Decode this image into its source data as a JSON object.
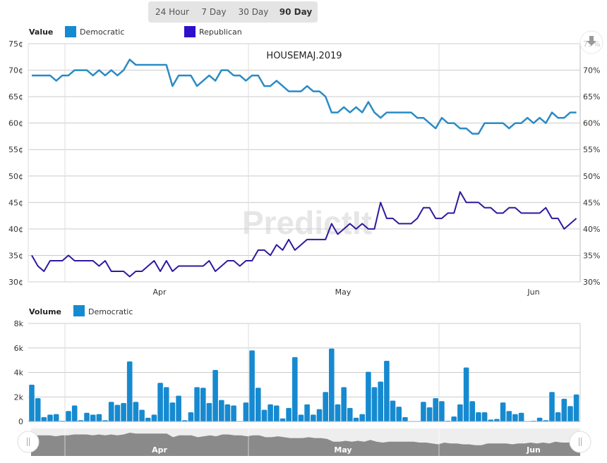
{
  "range_selector": {
    "options": [
      "24 Hour",
      "7 Day",
      "30 Day",
      "90 Day"
    ],
    "selected": "90 Day"
  },
  "export_icon": "download-icon",
  "watermark": "PredictIt",
  "colors": {
    "democratic_line": "#2a8bc4",
    "democratic_bar": "#168ad0",
    "republican": "#2d0fcc",
    "republican_line": "#2c1a9e",
    "navigator_fill": "#8a8a8a",
    "navigator_bg": "#eeeeee",
    "grid": "#cccccc"
  },
  "chart_data": [
    {
      "type": "line",
      "title": "HOUSEMAJ.2019",
      "legend_title": "Value",
      "legend_placement": "top-left",
      "x_range": [
        "Mar 11",
        "Jun 8"
      ],
      "x_tick_labels": [
        "Apr",
        "May",
        "Jun"
      ],
      "y_left_ticks": [
        "75¢",
        "70¢",
        "65¢",
        "60¢",
        "55¢",
        "50¢",
        "45¢",
        "40¢",
        "35¢",
        "30¢"
      ],
      "y_right_ticks": [
        "75%",
        "70%",
        "65%",
        "60%",
        "55%",
        "50%",
        "45%",
        "40%",
        "35%",
        "30%"
      ],
      "ylim": [
        30,
        75
      ],
      "grid": true,
      "series": [
        {
          "name": "Democratic",
          "values": [
            69,
            69,
            69,
            69,
            68,
            69,
            69,
            70,
            70,
            70,
            69,
            70,
            69,
            70,
            69,
            70,
            72,
            71,
            71,
            71,
            71,
            71,
            71,
            67,
            69,
            69,
            69,
            67,
            68,
            69,
            68,
            70,
            70,
            69,
            69,
            68,
            69,
            69,
            67,
            67,
            68,
            67,
            66,
            66,
            66,
            67,
            66,
            66,
            65,
            62,
            62,
            63,
            62,
            63,
            62,
            64,
            62,
            61,
            62,
            62,
            62,
            62,
            62,
            61,
            61,
            60,
            59,
            61,
            60,
            60,
            59,
            59,
            58,
            58,
            60,
            60,
            60,
            60,
            59,
            60,
            60,
            61,
            60,
            61,
            60,
            62,
            61,
            61,
            62,
            62
          ]
        },
        {
          "name": "Republican",
          "values": [
            35,
            33,
            32,
            34,
            34,
            34,
            35,
            34,
            34,
            34,
            34,
            33,
            34,
            32,
            32,
            32,
            31,
            32,
            32,
            33,
            34,
            32,
            34,
            32,
            33,
            33,
            33,
            33,
            33,
            34,
            32,
            33,
            34,
            34,
            33,
            34,
            34,
            36,
            36,
            35,
            37,
            36,
            38,
            36,
            37,
            38,
            38,
            38,
            38,
            41,
            39,
            40,
            41,
            40,
            41,
            40,
            40,
            45,
            42,
            42,
            41,
            41,
            41,
            42,
            44,
            44,
            42,
            42,
            43,
            43,
            47,
            45,
            45,
            45,
            44,
            44,
            43,
            43,
            44,
            44,
            43,
            43,
            43,
            43,
            44,
            42,
            42,
            40,
            41,
            42
          ]
        }
      ]
    },
    {
      "type": "bar",
      "legend_title": "Volume",
      "legend_placement": "top-left",
      "x_range": [
        "Mar 11",
        "Jun 8"
      ],
      "y_ticks": [
        "8k",
        "6k",
        "4k",
        "2k",
        "0"
      ],
      "ylim": [
        0,
        8000
      ],
      "grid": true,
      "series": [
        {
          "name": "Democratic",
          "values": [
            3000,
            1900,
            350,
            550,
            600,
            50,
            850,
            1300,
            100,
            700,
            550,
            600,
            100,
            1600,
            1350,
            1500,
            4900,
            1600,
            950,
            300,
            550,
            3150,
            2800,
            1550,
            2100,
            100,
            750,
            2800,
            2750,
            1500,
            4200,
            1750,
            1400,
            1300,
            0,
            1550,
            5800,
            2750,
            950,
            1400,
            1300,
            250,
            1100,
            5250,
            550,
            1400,
            550,
            1000,
            2400,
            5950,
            1400,
            2800,
            1100,
            300,
            600,
            4050,
            2800,
            3250,
            4950,
            1700,
            1200,
            350,
            20,
            20,
            1600,
            1150,
            1900,
            1650,
            50,
            400,
            1400,
            4400,
            1650,
            750,
            750,
            150,
            200,
            1550,
            850,
            600,
            700,
            20,
            50,
            300,
            100,
            2400,
            750,
            1850,
            1250,
            2200
          ]
        }
      ]
    }
  ]
}
